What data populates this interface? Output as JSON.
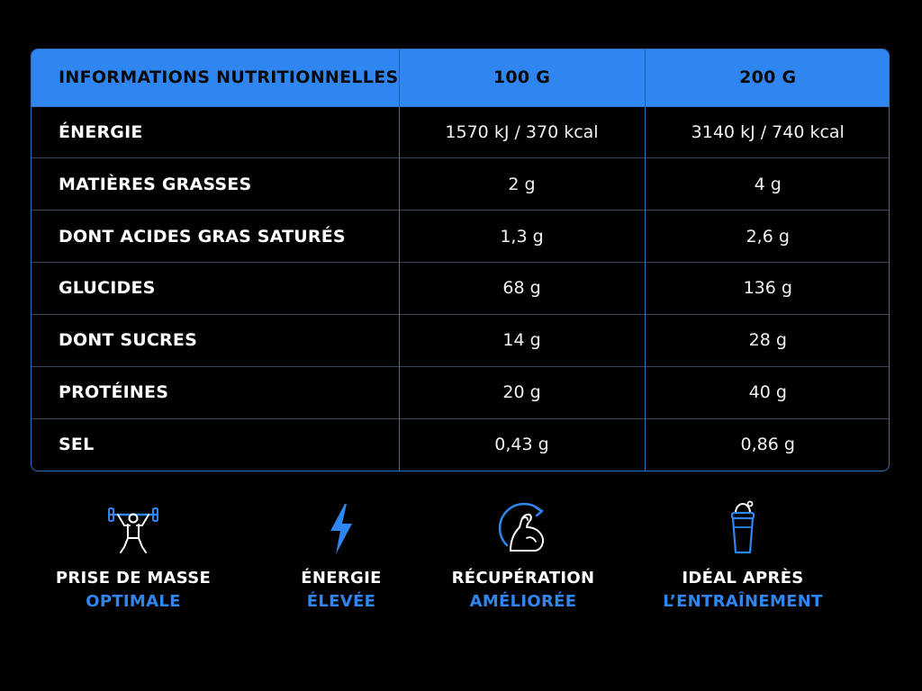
{
  "table": {
    "headers": [
      "INFORMATIONS NUTRITIONNELLES",
      "100 G",
      "200 G"
    ],
    "rows": [
      {
        "label": "ÉNERGIE",
        "v100": "1570 kJ / 370 kcal",
        "v200": "3140 kJ / 740 kcal"
      },
      {
        "label": "MATIÈRES GRASSES",
        "v100": "2 g",
        "v200": "4 g"
      },
      {
        "label": "DONT ACIDES GRAS SATURÉS",
        "v100": "1,3 g",
        "v200": "2,6 g"
      },
      {
        "label": "GLUCIDES",
        "v100": "68 g",
        "v200": "136 g"
      },
      {
        "label": "DONT SUCRES",
        "v100": "14 g",
        "v200": "28 g"
      },
      {
        "label": "PROTÉINES",
        "v100": "20 g",
        "v200": "40 g"
      },
      {
        "label": "SEL",
        "v100": "0,43 g",
        "v200": "0,86 g"
      }
    ]
  },
  "benefits": [
    {
      "icon": "weightlifter-icon",
      "line1": "PRISE DE MASSE",
      "line2": "OPTIMALE"
    },
    {
      "icon": "lightning-icon",
      "line1": "ÉNERGIE",
      "line2": "ÉLEVÉE"
    },
    {
      "icon": "flexed-arm-icon",
      "line1": "RÉCUPÉRATION",
      "line2": "AMÉLIORÉE"
    },
    {
      "icon": "shaker-icon",
      "line1": "IDÉAL APRÈS",
      "line2": "L’ENTRAÎNEMENT"
    }
  ],
  "colors": {
    "accent": "#2f86f0",
    "background": "#000000",
    "text": "#ffffff"
  }
}
